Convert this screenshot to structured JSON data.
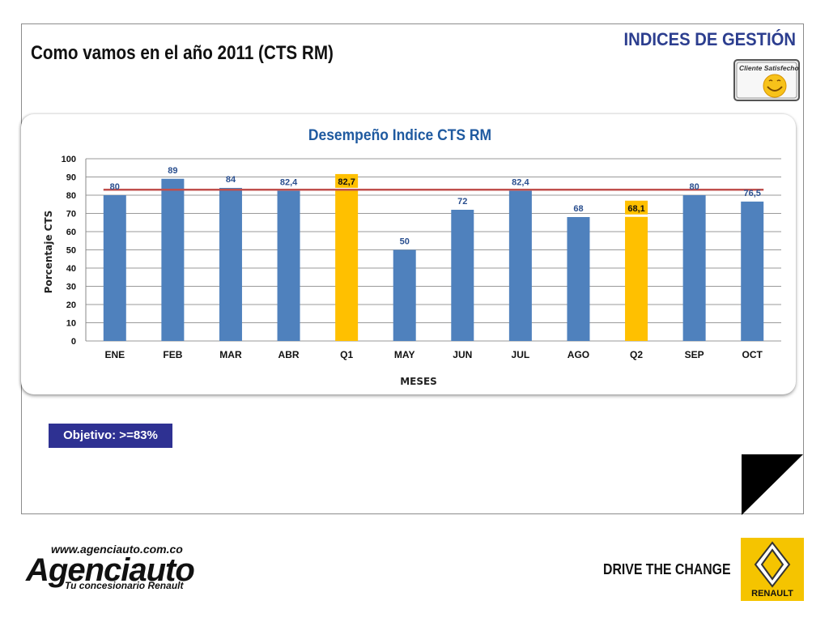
{
  "header": {
    "title": "Como vamos en el año 2011 (CTS RM)",
    "section": "INDICES DE GESTIÓN",
    "badge_label": "Cliente Satisfecho"
  },
  "objective_label": "Objetivo: >=83%",
  "footer": {
    "url": "www.agenciauto.com.co",
    "brand": "Agenciauto",
    "tagline": "Tu concesionario Renault",
    "slogan": "DRIVE THE CHANGE",
    "logo_text": "RENAULT"
  },
  "colors": {
    "bar": "#4f81bd",
    "highlight": "#ffc000",
    "target_line": "#c0504d",
    "title": "#1f5aa0",
    "value_label": "#2a4f8f"
  },
  "chart_data": {
    "type": "bar",
    "title": "Desempeño Indice CTS RM",
    "xlabel": "MESES",
    "ylabel": "Porcentaje CTS",
    "categories": [
      "ENE",
      "FEB",
      "MAR",
      "ABR",
      "Q1",
      "MAY",
      "JUN",
      "JUL",
      "AGO",
      "Q2",
      "SEP",
      "OCT"
    ],
    "values": [
      80,
      89,
      84,
      82.4,
      82.7,
      50,
      72,
      82.4,
      68,
      68.1,
      80,
      76.5
    ],
    "value_labels": [
      "80",
      "89",
      "84",
      "82,4",
      "82,7",
      "50",
      "72",
      "82,4",
      "68",
      "68,1",
      "80",
      "76,5"
    ],
    "highlighted": [
      "Q1",
      "Q2"
    ],
    "target": 83,
    "ylim": [
      0,
      100
    ],
    "yticks": [
      0,
      10,
      20,
      30,
      40,
      50,
      60,
      70,
      80,
      90,
      100
    ],
    "grid": true,
    "legend": "none"
  }
}
